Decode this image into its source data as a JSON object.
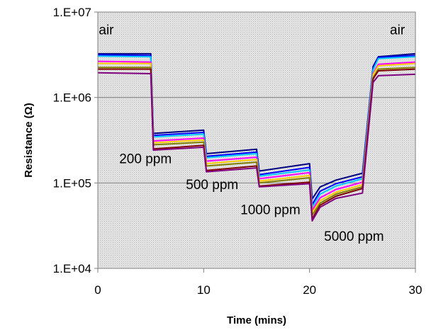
{
  "chart_data": {
    "type": "line",
    "title": "",
    "xlabel": "Time (mins)",
    "ylabel": "Resistance (Ω)",
    "xlim": [
      0,
      30
    ],
    "ylim": [
      10000,
      10000000
    ],
    "yscale": "log",
    "grid": true,
    "x_ticks": [
      0,
      10,
      20,
      30
    ],
    "x_tick_labels": [
      "0",
      "10",
      "20",
      "30"
    ],
    "y_ticks": [
      10000,
      100000,
      1000000,
      10000000
    ],
    "y_tick_labels": [
      "1.E+04",
      "1.E+05",
      "1.E+06",
      "1.E+07"
    ],
    "annotations": [
      {
        "text": "air",
        "x": 0.8,
        "y": 5500000
      },
      {
        "text": "air",
        "x": 28.3,
        "y": 5500000
      },
      {
        "text": "200 ppm",
        "x": 4.5,
        "y": 170000
      },
      {
        "text": "500 ppm",
        "x": 10.8,
        "y": 85000
      },
      {
        "text": "1000 ppm",
        "x": 16.3,
        "y": 43000
      },
      {
        "text": "5000 ppm",
        "x": 24.2,
        "y": 21000
      }
    ],
    "series": [
      {
        "color": "#000080",
        "values": [
          [
            0,
            3250000
          ],
          [
            5,
            3250000
          ],
          [
            5.25,
            380000
          ],
          [
            10,
            415000
          ],
          [
            10.25,
            220000
          ],
          [
            15,
            248000
          ],
          [
            15.25,
            138000
          ],
          [
            20,
            168000
          ],
          [
            20.25,
            65000
          ],
          [
            21,
            90000
          ],
          [
            22.5,
            108000
          ],
          [
            25,
            130000
          ],
          [
            26,
            2300000
          ],
          [
            26.5,
            3000000
          ],
          [
            30,
            3250000
          ]
        ]
      },
      {
        "color": "#0000FF",
        "values": [
          [
            0,
            3150000
          ],
          [
            5,
            3100000
          ],
          [
            5.25,
            360000
          ],
          [
            10,
            390000
          ],
          [
            10.25,
            205000
          ],
          [
            15,
            230000
          ],
          [
            15.25,
            125000
          ],
          [
            20,
            152000
          ],
          [
            20.25,
            56000
          ],
          [
            21,
            80000
          ],
          [
            22.5,
            98000
          ],
          [
            25,
            118000
          ],
          [
            26,
            2200000
          ],
          [
            26.5,
            2950000
          ],
          [
            30,
            3100000
          ]
        ]
      },
      {
        "color": "#00CCFF",
        "values": [
          [
            0,
            3050000
          ],
          [
            5,
            3000000
          ],
          [
            5.25,
            345000
          ],
          [
            10,
            372000
          ],
          [
            10.25,
            197000
          ],
          [
            15,
            220000
          ],
          [
            15.25,
            120000
          ],
          [
            20,
            142000
          ],
          [
            20.25,
            52000
          ],
          [
            21,
            74000
          ],
          [
            22.5,
            92000
          ],
          [
            25,
            112000
          ],
          [
            26,
            2100000
          ],
          [
            26.5,
            2850000
          ],
          [
            30,
            3000000
          ]
        ]
      },
      {
        "color": "#FF00FF",
        "values": [
          [
            0,
            2650000
          ],
          [
            5,
            2600000
          ],
          [
            5.25,
            310000
          ],
          [
            10,
            335000
          ],
          [
            10.25,
            180000
          ],
          [
            15,
            200000
          ],
          [
            15.25,
            112000
          ],
          [
            20,
            132000
          ],
          [
            20.25,
            48000
          ],
          [
            21,
            67000
          ],
          [
            22.5,
            84000
          ],
          [
            25,
            102000
          ],
          [
            26,
            1900000
          ],
          [
            26.5,
            2450000
          ],
          [
            30,
            2600000
          ]
        ]
      },
      {
        "color": "#FFCC00",
        "values": [
          [
            0,
            2500000
          ],
          [
            5,
            2500000
          ],
          [
            5.25,
            295000
          ],
          [
            10,
            318000
          ],
          [
            10.25,
            168000
          ],
          [
            15,
            188000
          ],
          [
            15.25,
            105000
          ],
          [
            20,
            122000
          ],
          [
            20.25,
            45000
          ],
          [
            21,
            62000
          ],
          [
            22.5,
            78000
          ],
          [
            25,
            95000
          ],
          [
            26,
            1850000
          ],
          [
            26.5,
            2350000
          ],
          [
            30,
            2500000
          ]
        ]
      },
      {
        "color": "#808000",
        "values": [
          [
            0,
            2250000
          ],
          [
            5,
            2250000
          ],
          [
            5.25,
            280000
          ],
          [
            10,
            300000
          ],
          [
            10.25,
            158000
          ],
          [
            15,
            175000
          ],
          [
            15.25,
            100000
          ],
          [
            20,
            115000
          ],
          [
            20.25,
            42000
          ],
          [
            21,
            58000
          ],
          [
            22.5,
            74000
          ],
          [
            25,
            90000
          ],
          [
            26,
            1700000
          ],
          [
            26.5,
            2150000
          ],
          [
            30,
            2250000
          ]
        ]
      },
      {
        "color": "#800000",
        "values": [
          [
            0,
            2150000
          ],
          [
            5,
            2150000
          ],
          [
            5.25,
            250000
          ],
          [
            10,
            275000
          ],
          [
            10.25,
            140000
          ],
          [
            15,
            158000
          ],
          [
            15.25,
            92000
          ],
          [
            20,
            102000
          ],
          [
            20.25,
            38000
          ],
          [
            21,
            55000
          ],
          [
            22.5,
            70000
          ],
          [
            25,
            86000
          ],
          [
            26,
            1650000
          ],
          [
            26.5,
            2050000
          ],
          [
            30,
            2150000
          ]
        ]
      },
      {
        "color": "#800080",
        "values": [
          [
            0,
            1950000
          ],
          [
            5,
            1900000
          ],
          [
            5.25,
            242000
          ],
          [
            10,
            262000
          ],
          [
            10.25,
            135000
          ],
          [
            15,
            150000
          ],
          [
            15.25,
            90000
          ],
          [
            20,
            98000
          ],
          [
            20.25,
            36000
          ],
          [
            21,
            52000
          ],
          [
            22.5,
            66000
          ],
          [
            25,
            76000
          ],
          [
            26,
            1500000
          ],
          [
            26.5,
            1800000
          ],
          [
            30,
            1870000
          ]
        ]
      }
    ]
  }
}
